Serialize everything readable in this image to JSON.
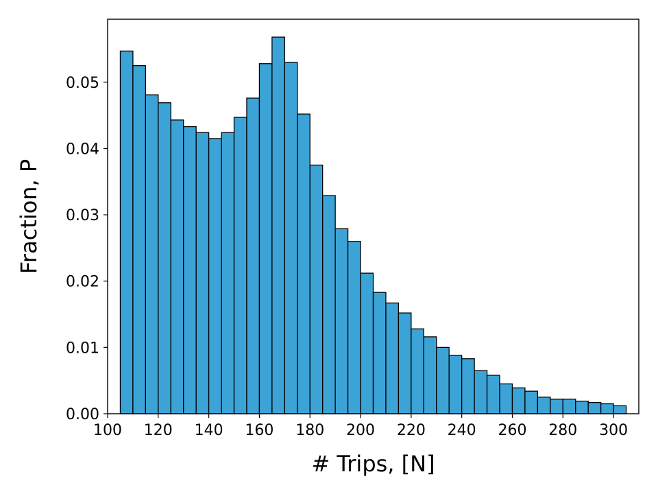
{
  "chart_data": {
    "type": "bar",
    "title": "",
    "xlabel": "# Trips, [N]",
    "ylabel": "Fraction, P",
    "xlim": [
      100,
      310
    ],
    "ylim": [
      0,
      0.0595
    ],
    "bin_width": 5,
    "bar_color": "#3ca3d6",
    "edge_color": "#000000",
    "bins_start": [
      105,
      110,
      115,
      120,
      125,
      130,
      135,
      140,
      145,
      150,
      155,
      160,
      165,
      170,
      175,
      180,
      185,
      190,
      195,
      200,
      205,
      210,
      215,
      220,
      225,
      230,
      235,
      240,
      245,
      250,
      255,
      260,
      265,
      270,
      275,
      280,
      285,
      290,
      295,
      300
    ],
    "values": [
      0.0547,
      0.0525,
      0.0481,
      0.0469,
      0.0443,
      0.0433,
      0.0424,
      0.0415,
      0.0424,
      0.0447,
      0.0476,
      0.0528,
      0.0568,
      0.053,
      0.0452,
      0.0375,
      0.0329,
      0.0279,
      0.026,
      0.0212,
      0.0183,
      0.0167,
      0.0152,
      0.0128,
      0.0116,
      0.01,
      0.0088,
      0.0083,
      0.0065,
      0.0058,
      0.0045,
      0.0039,
      0.0034,
      0.0025,
      0.0022,
      0.0022,
      0.0019,
      0.0017,
      0.0015,
      0.0012
    ],
    "xticks": [
      100,
      120,
      140,
      160,
      180,
      200,
      220,
      240,
      260,
      280,
      300
    ],
    "yticks": [
      0,
      0.01,
      0.02,
      0.03,
      0.04,
      0.05
    ],
    "xtick_labels": [
      "100",
      "120",
      "140",
      "160",
      "180",
      "200",
      "220",
      "240",
      "260",
      "280",
      "300"
    ],
    "ytick_labels": [
      "0.00",
      "0.01",
      "0.02",
      "0.03",
      "0.04",
      "0.05"
    ]
  }
}
